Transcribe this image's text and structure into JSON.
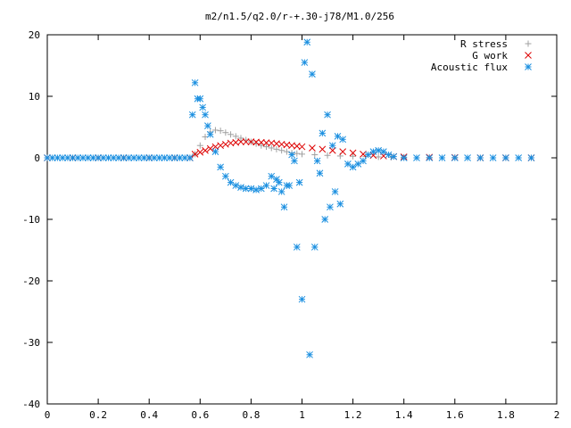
{
  "chart_data": {
    "type": "scatter",
    "title": "m2/n1.5/q2.0/r-+.30-j78/M1.0/256",
    "xlabel": "",
    "ylabel": "",
    "xlim": [
      0,
      2
    ],
    "ylim": [
      -40,
      20
    ],
    "xticks": [
      0,
      0.2,
      0.4,
      0.6,
      0.8,
      1,
      1.2,
      1.4,
      1.6,
      1.8,
      2
    ],
    "xtick_labels": [
      "0",
      "0.2",
      "0.4",
      "0.6",
      "0.8",
      "1",
      "1.2",
      "1.4",
      "1.6",
      "1.8",
      "2"
    ],
    "yticks": [
      20,
      10,
      0,
      -10,
      -20,
      -30,
      -40
    ],
    "ytick_labels": [
      "20",
      "10",
      "0",
      "-10",
      "-20",
      "-30",
      "-40"
    ],
    "legend_position": "top-right",
    "grid": false,
    "series": [
      {
        "name": "R stress",
        "marker": "+",
        "color": "#a0a0a0",
        "x": [
          0.0,
          0.1,
          0.2,
          0.3,
          0.4,
          0.5,
          0.56,
          0.58,
          0.6,
          0.62,
          0.64,
          0.66,
          0.68,
          0.7,
          0.72,
          0.74,
          0.76,
          0.78,
          0.8,
          0.82,
          0.84,
          0.86,
          0.88,
          0.9,
          0.92,
          0.94,
          0.96,
          0.98,
          1.0,
          1.05,
          1.1,
          1.15,
          1.2,
          1.25,
          1.3,
          1.35,
          1.4,
          1.5,
          1.6,
          1.7,
          1.8,
          1.9
        ],
        "y": [
          0,
          0,
          0,
          0,
          0,
          0,
          0,
          0.6,
          2.0,
          3.4,
          4.2,
          4.5,
          4.4,
          4.1,
          3.8,
          3.5,
          3.2,
          2.9,
          2.6,
          2.3,
          2.0,
          1.8,
          1.6,
          1.4,
          1.2,
          1.0,
          0.8,
          0.7,
          0.6,
          0.5,
          0.4,
          0.3,
          0.25,
          0.2,
          0.15,
          0.1,
          0.1,
          0.05,
          0.05,
          0,
          0,
          0
        ]
      },
      {
        "name": "G work",
        "marker": "x",
        "color": "#dd0000",
        "x": [
          0.0,
          0.1,
          0.2,
          0.3,
          0.4,
          0.5,
          0.56,
          0.58,
          0.6,
          0.62,
          0.64,
          0.66,
          0.68,
          0.7,
          0.72,
          0.74,
          0.76,
          0.78,
          0.8,
          0.82,
          0.84,
          0.86,
          0.88,
          0.9,
          0.92,
          0.94,
          0.96,
          0.98,
          1.0,
          1.04,
          1.08,
          1.12,
          1.16,
          1.2,
          1.24,
          1.28,
          1.32,
          1.36,
          1.4,
          1.5,
          1.6,
          1.7,
          1.8,
          1.9
        ],
        "y": [
          0,
          0,
          0,
          0,
          0,
          0,
          0,
          0.6,
          0.9,
          1.2,
          1.5,
          1.8,
          2.0,
          2.2,
          2.4,
          2.5,
          2.6,
          2.6,
          2.6,
          2.55,
          2.5,
          2.45,
          2.4,
          2.3,
          2.2,
          2.1,
          2.0,
          1.9,
          1.8,
          1.6,
          1.4,
          1.2,
          1.0,
          0.8,
          0.6,
          0.4,
          0.3,
          0.2,
          0.15,
          0.1,
          0.05,
          0,
          0,
          0
        ]
      },
      {
        "name": "Acoustic flux",
        "marker": "*",
        "color": "#1a8fe0",
        "x": [
          0.0,
          0.02,
          0.04,
          0.06,
          0.08,
          0.1,
          0.12,
          0.14,
          0.16,
          0.18,
          0.2,
          0.22,
          0.24,
          0.26,
          0.28,
          0.3,
          0.32,
          0.34,
          0.36,
          0.38,
          0.4,
          0.42,
          0.44,
          0.46,
          0.48,
          0.5,
          0.52,
          0.54,
          0.56,
          0.57,
          0.58,
          0.59,
          0.6,
          0.61,
          0.62,
          0.63,
          0.64,
          0.66,
          0.68,
          0.7,
          0.72,
          0.74,
          0.76,
          0.78,
          0.8,
          0.82,
          0.84,
          0.86,
          0.88,
          0.89,
          0.9,
          0.91,
          0.92,
          0.93,
          0.94,
          0.95,
          0.96,
          0.97,
          0.98,
          0.99,
          1.0,
          1.01,
          1.02,
          1.03,
          1.04,
          1.05,
          1.06,
          1.07,
          1.08,
          1.09,
          1.1,
          1.11,
          1.12,
          1.13,
          1.14,
          1.15,
          1.16,
          1.18,
          1.2,
          1.22,
          1.24,
          1.26,
          1.28,
          1.3,
          1.32,
          1.34,
          1.36,
          1.4,
          1.45,
          1.5,
          1.55,
          1.6,
          1.65,
          1.7,
          1.75,
          1.8,
          1.85,
          1.9
        ],
        "y": [
          0,
          0,
          0,
          0,
          0,
          0,
          0,
          0,
          0,
          0,
          0,
          0,
          0,
          0,
          0,
          0,
          0,
          0,
          0,
          0,
          0,
          0,
          0,
          0,
          0,
          0,
          0,
          0,
          0,
          7.0,
          12.2,
          9.6,
          9.6,
          8.2,
          7.0,
          5.2,
          3.8,
          1.0,
          -1.5,
          -3.0,
          -4.0,
          -4.5,
          -4.8,
          -5.0,
          -5.0,
          -5.2,
          -5.0,
          -4.5,
          -3.0,
          -5.0,
          -3.5,
          -4.0,
          -5.5,
          -8.0,
          -4.5,
          -4.5,
          0.5,
          -0.5,
          -14.5,
          -4.0,
          -23.0,
          15.5,
          18.8,
          -32.0,
          13.6,
          -14.5,
          -0.5,
          -2.5,
          4.0,
          -10.0,
          7.0,
          -8.0,
          2.0,
          -5.5,
          3.5,
          -7.5,
          3.0,
          -1.0,
          -1.5,
          -1.0,
          -0.5,
          0.5,
          1.0,
          1.2,
          1.0,
          0.5,
          0.2,
          0,
          0,
          0,
          0,
          0,
          0,
          0,
          0,
          0,
          0,
          0
        ]
      }
    ]
  }
}
